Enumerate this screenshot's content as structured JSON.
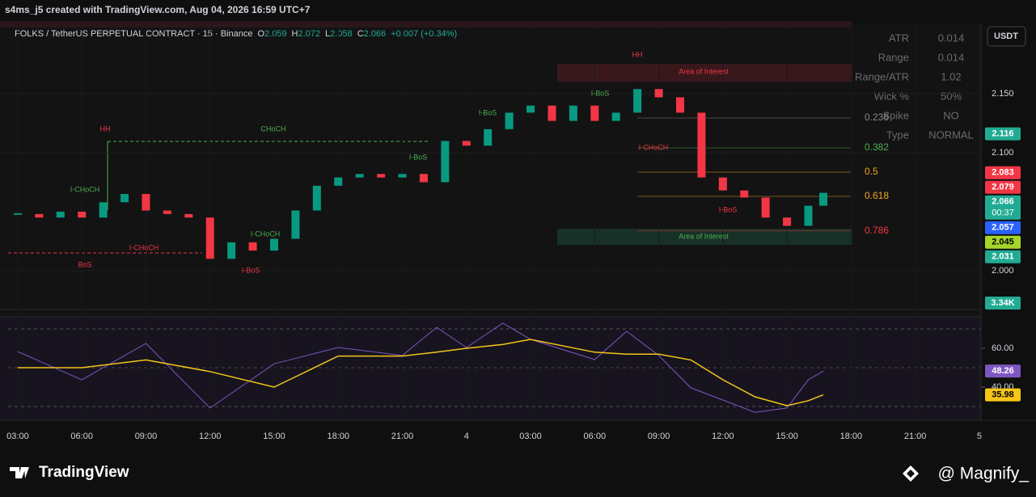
{
  "header": {
    "credit": "s4ms_j5 created with TradingView.com, Aug 04, 2026 16:59 UTC+7"
  },
  "legend": {
    "symbol": "FOLKS / TetherUS PERPETUAL CONTRACT · 15 · Binance",
    "open_label": "O",
    "open": 2.059,
    "high_label": "H",
    "high": 2.072,
    "low_label": "L",
    "low": 2.058,
    "close_label": "C",
    "close": 2.066,
    "change": "+0.007 (+0.34%)"
  },
  "currency_button": "USDT",
  "stats_table": {
    "rows": [
      [
        "ATR",
        "0.014"
      ],
      [
        "Range",
        "0.014"
      ],
      [
        "Range/ATR",
        "1.02"
      ],
      [
        "Wick %",
        "50%"
      ],
      [
        "Spike",
        "NO"
      ],
      [
        "Type",
        "NORMAL"
      ]
    ]
  },
  "chart_data": [
    {
      "type": "candlestick",
      "x": [
        3,
        4,
        5,
        6,
        7,
        8,
        9,
        10,
        11,
        12,
        13,
        14,
        15,
        16,
        17,
        18,
        19,
        20,
        21,
        22,
        23,
        24,
        25,
        26,
        27,
        28,
        29,
        30,
        31,
        32,
        33,
        34,
        35,
        36,
        37,
        38,
        39,
        40,
        40.7
      ],
      "values": [
        2.048,
        2.045,
        2.05,
        2.045,
        2.058,
        2.065,
        2.051,
        2.048,
        2.045,
        2.01,
        2.024,
        2.017,
        2.027,
        2.051,
        2.072,
        2.079,
        2.082,
        2.079,
        2.082,
        2.075,
        2.11,
        2.106,
        2.12,
        2.134,
        2.14,
        2.127,
        2.14,
        2.127,
        2.134,
        2.154,
        2.147,
        2.134,
        2.079,
        2.068,
        2.062,
        2.045,
        2.038,
        2.055,
        2.066
      ],
      "up_color": "#089981",
      "down_color": "#f23645",
      "xlim": [
        2.17,
        48.08
      ],
      "ylim": [
        1.967,
        2.209
      ],
      "xticks": [
        {
          "value": 3,
          "label": "03:00"
        },
        {
          "value": 6,
          "label": "06:00"
        },
        {
          "value": 9,
          "label": "09:00"
        },
        {
          "value": 12,
          "label": "12:00"
        },
        {
          "value": 15,
          "label": "15:00"
        },
        {
          "value": 18,
          "label": "18:00"
        },
        {
          "value": 21,
          "label": "21:00"
        },
        {
          "value": 24,
          "label": "4"
        },
        {
          "value": 27,
          "label": "03:00"
        },
        {
          "value": 30,
          "label": "06:00"
        },
        {
          "value": 33,
          "label": "09:00"
        },
        {
          "value": 36,
          "label": "12:00"
        },
        {
          "value": 39,
          "label": "15:00"
        },
        {
          "value": 42,
          "label": "18:00"
        },
        {
          "value": 45,
          "label": "21:00"
        },
        {
          "value": 48,
          "label": "5"
        }
      ],
      "yticks": [
        {
          "value": 2,
          "label": "2.000"
        },
        {
          "value": 2.1,
          "label": "2.100"
        },
        {
          "value": 2.15,
          "label": "2.150"
        }
      ],
      "price_tags": [
        {
          "value": 2.116,
          "color": "#22ab94"
        },
        {
          "value": 2.083,
          "color": "#f23645"
        },
        {
          "value": 2.079,
          "color": "#f23645"
        },
        {
          "value": 2.066,
          "color": "#22ab94",
          "note": "00:37"
        },
        {
          "value": 2.057,
          "color": "#2962ff"
        },
        {
          "value": 2.045,
          "color": "#a5d62a",
          "text_color": "#000000"
        },
        {
          "value": 2.031,
          "color": "#22ab94"
        }
      ],
      "volume_tag": "3.34K",
      "fib_levels": [
        {
          "value": 0.236,
          "color": "#888888"
        },
        {
          "value": 0.382,
          "color": "#4caf50"
        },
        {
          "value": 0.5,
          "color": "#f5a623"
        },
        {
          "value": 0.618,
          "color": "#f5a623"
        },
        {
          "value": 0.786,
          "color": "#f23645"
        }
      ],
      "annotations": [
        "HH",
        "CHoCH",
        "I-CHoCH",
        "I-CHoCH",
        "BoS",
        "I-CHoCH",
        "I-BoS",
        "I-BoS",
        "I-BoS",
        "I-BoS",
        "HH",
        "I-CHoCH",
        "I-BoS",
        "Area of Interest",
        "Area of Interest"
      ]
    },
    {
      "type": "line",
      "x": [
        3,
        6,
        9,
        12,
        15,
        18,
        21,
        22.6,
        24,
        25.7,
        27,
        30,
        31.5,
        33,
        34.5,
        36,
        37.5,
        39,
        40,
        40.7
      ],
      "series": [
        {
          "color": "#7e57c2",
          "values": [
            58.3,
            43.8,
            62.5,
            29.2,
            52,
            60.4,
            56.3,
            70.8,
            60.4,
            73,
            64.6,
            54.2,
            68.8,
            56.3,
            39.6,
            33.3,
            27,
            29.2,
            43.8,
            48.26
          ]
        },
        {
          "color": "#f5c518",
          "values": [
            50,
            50,
            54,
            48,
            40,
            56,
            56,
            58,
            60,
            62,
            64.6,
            58,
            57,
            57,
            54,
            43.8,
            35,
            30.4,
            33,
            35.98
          ]
        }
      ],
      "xlim": [
        2.17,
        48.08
      ],
      "ylim": [
        22.9,
        76.25
      ],
      "yticks": [
        {
          "value": 60,
          "label": "60.00"
        },
        {
          "value": 40,
          "label": "40.00"
        }
      ],
      "price_tags": [
        {
          "value": 48.26,
          "color": "#7e57c2"
        },
        {
          "value": 35.98,
          "color": "#f5c518",
          "text_color": "#000000"
        }
      ]
    }
  ],
  "footer": {
    "brand": "TradingView",
    "author": "@ Magnify_"
  }
}
